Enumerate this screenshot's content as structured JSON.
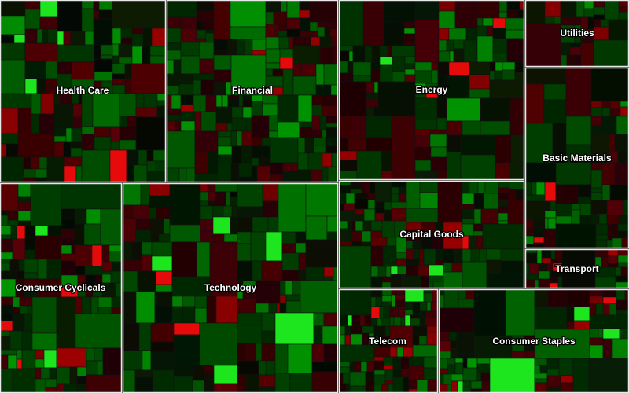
{
  "chart_data": {
    "type": "treemap",
    "title": "",
    "color_scale": {
      "negative": "#ff0000",
      "neutral": "#0c1a0c",
      "positive": "#00ff00"
    },
    "sectors": [
      {
        "name": "Health Care"
      },
      {
        "name": "Financial"
      },
      {
        "name": "Energy"
      },
      {
        "name": "Utilities"
      },
      {
        "name": "Basic Materials"
      },
      {
        "name": "Consumer Cyclicals"
      },
      {
        "name": "Technology"
      },
      {
        "name": "Capital Goods"
      },
      {
        "name": "Transport"
      },
      {
        "name": "Telecom"
      },
      {
        "name": "Consumer Staples"
      }
    ]
  }
}
